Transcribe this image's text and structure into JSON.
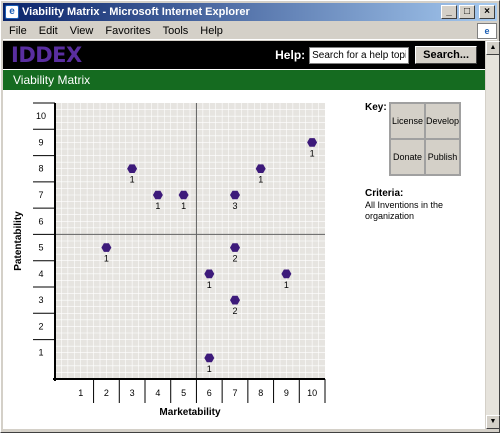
{
  "window": {
    "title": "Viability Matrix - Microsoft Internet Explorer",
    "app_icon": "e",
    "min_glyph": "_",
    "max_glyph": "□",
    "close_glyph": "×"
  },
  "menu": {
    "items": [
      {
        "label": "File"
      },
      {
        "label": "Edit"
      },
      {
        "label": "View"
      },
      {
        "label": "Favorites"
      },
      {
        "label": "Tools"
      },
      {
        "label": "Help"
      }
    ]
  },
  "header": {
    "logo": "IDDEX",
    "help_label": "Help:",
    "help_input_value": "Search for a help topic",
    "search_button": "Search..."
  },
  "banner": {
    "title": "Viability Matrix"
  },
  "key": {
    "title": "Key:",
    "cells": [
      "License",
      "Develop",
      "Donate",
      "Publish"
    ]
  },
  "criteria": {
    "title": "Criteria:",
    "text": "All Inventions in the organization"
  },
  "colors": {
    "marker": "#3d1a7a",
    "plot_bg": "#e6e4e0",
    "grid": "#ffffff",
    "banner": "#156b20",
    "logo": "#5a2ea0"
  },
  "chart_data": {
    "type": "scatter",
    "xlabel": "Marketability",
    "ylabel": "Patentability",
    "xlim": [
      0,
      10.5
    ],
    "ylim": [
      0,
      10.5
    ],
    "xticks": [
      1,
      2,
      3,
      4,
      5,
      6,
      7,
      8,
      9,
      10
    ],
    "yticks": [
      1,
      2,
      3,
      4,
      5,
      6,
      7,
      8,
      9,
      10
    ],
    "quadrant_dividers": {
      "x": 5,
      "y": 5
    },
    "points": [
      {
        "x": 10,
        "y": 9,
        "label": "1"
      },
      {
        "x": 3,
        "y": 8,
        "label": "1"
      },
      {
        "x": 8,
        "y": 8,
        "label": "1"
      },
      {
        "x": 4,
        "y": 7,
        "label": "1"
      },
      {
        "x": 5,
        "y": 7,
        "label": "1"
      },
      {
        "x": 7,
        "y": 7,
        "label": "3"
      },
      {
        "x": 2,
        "y": 5,
        "label": "1"
      },
      {
        "x": 7,
        "y": 5,
        "label": "2"
      },
      {
        "x": 6,
        "y": 4,
        "label": "1"
      },
      {
        "x": 9,
        "y": 4,
        "label": "1"
      },
      {
        "x": 7,
        "y": 3,
        "label": "2"
      },
      {
        "x": 6,
        "y": 0.8,
        "label": "1"
      }
    ]
  }
}
